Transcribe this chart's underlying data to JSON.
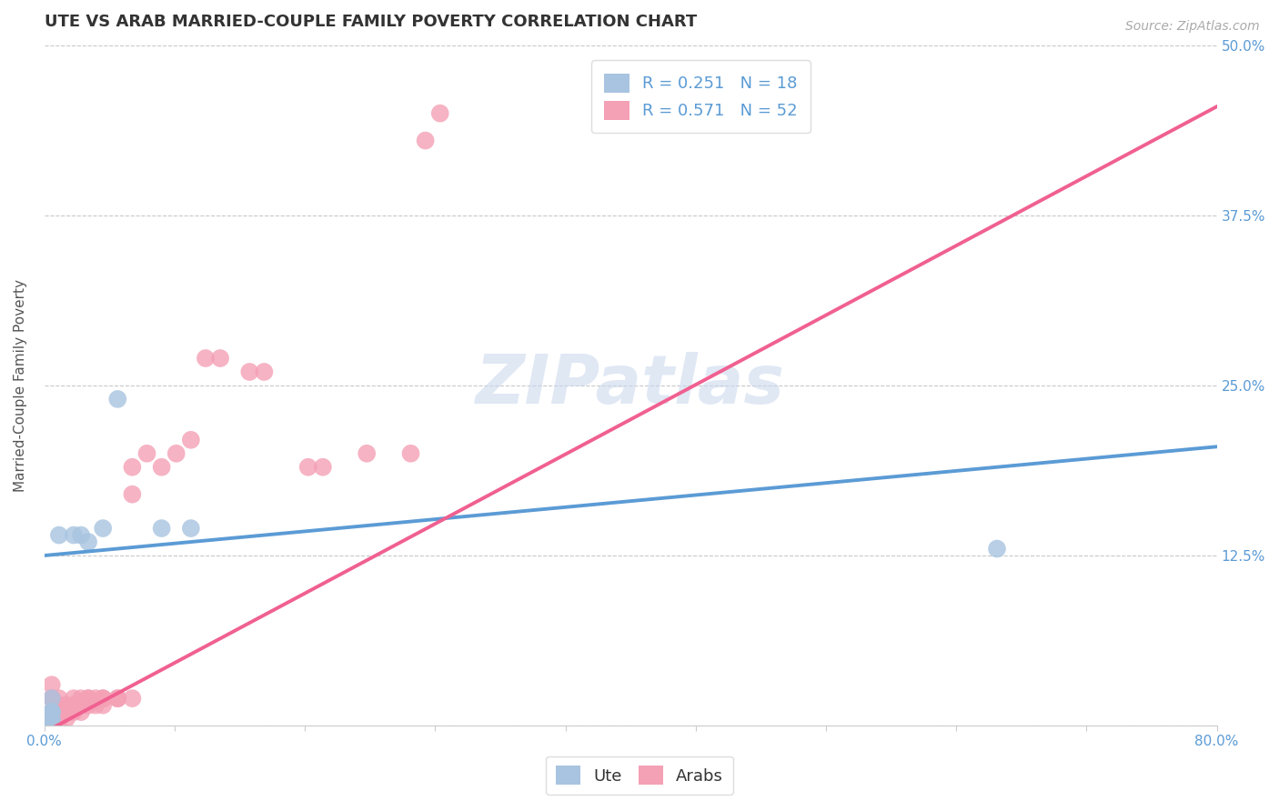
{
  "title": "UTE VS ARAB MARRIED-COUPLE FAMILY POVERTY CORRELATION CHART",
  "source_text": "Source: ZipAtlas.com",
  "ylabel": "Married-Couple Family Poverty",
  "xlim": [
    0.0,
    0.8
  ],
  "ylim": [
    0.0,
    0.5
  ],
  "ute_R": 0.251,
  "ute_N": 18,
  "arab_R": 0.571,
  "arab_N": 52,
  "ute_color": "#a8c4e0",
  "arab_color": "#f4a0b5",
  "ute_line_color": "#5b9bd5",
  "arab_line_color": "#f06090",
  "watermark": "ZIPatlas",
  "ute_x": [
    0.005,
    0.005,
    0.005,
    0.005,
    0.005,
    0.005,
    0.005,
    0.005,
    0.005,
    0.01,
    0.02,
    0.025,
    0.03,
    0.04,
    0.05,
    0.08,
    0.1,
    0.65
  ],
  "ute_y": [
    0.0,
    0.0,
    0.005,
    0.005,
    0.01,
    0.01,
    0.01,
    0.01,
    0.02,
    0.14,
    0.14,
    0.14,
    0.135,
    0.145,
    0.24,
    0.145,
    0.145,
    0.13
  ],
  "arab_x": [
    0.005,
    0.005,
    0.005,
    0.005,
    0.005,
    0.005,
    0.005,
    0.005,
    0.005,
    0.005,
    0.01,
    0.01,
    0.01,
    0.01,
    0.01,
    0.01,
    0.015,
    0.015,
    0.015,
    0.02,
    0.02,
    0.02,
    0.025,
    0.025,
    0.025,
    0.03,
    0.03,
    0.03,
    0.035,
    0.035,
    0.04,
    0.04,
    0.04,
    0.05,
    0.05,
    0.06,
    0.06,
    0.06,
    0.07,
    0.08,
    0.09,
    0.1,
    0.11,
    0.12,
    0.14,
    0.15,
    0.18,
    0.19,
    0.22,
    0.25,
    0.26,
    0.27
  ],
  "arab_y": [
    0.0,
    0.0,
    0.005,
    0.005,
    0.01,
    0.01,
    0.01,
    0.02,
    0.02,
    0.03,
    0.0,
    0.005,
    0.01,
    0.01,
    0.015,
    0.02,
    0.005,
    0.01,
    0.015,
    0.01,
    0.015,
    0.02,
    0.01,
    0.015,
    0.02,
    0.015,
    0.02,
    0.02,
    0.015,
    0.02,
    0.015,
    0.02,
    0.02,
    0.02,
    0.02,
    0.02,
    0.17,
    0.19,
    0.2,
    0.19,
    0.2,
    0.21,
    0.27,
    0.27,
    0.26,
    0.26,
    0.19,
    0.19,
    0.2,
    0.2,
    0.43,
    0.45
  ],
  "ute_line_x0": 0.0,
  "ute_line_y0": 0.125,
  "ute_line_x1": 0.8,
  "ute_line_y1": 0.205,
  "arab_line_x0": 0.0,
  "arab_line_y0": -0.005,
  "arab_line_x1": 0.8,
  "arab_line_y1": 0.455,
  "grid_color": "#c8c8c8",
  "background_color": "#ffffff",
  "title_fontsize": 13,
  "axis_label_fontsize": 11,
  "tick_fontsize": 11,
  "legend_fontsize": 13
}
